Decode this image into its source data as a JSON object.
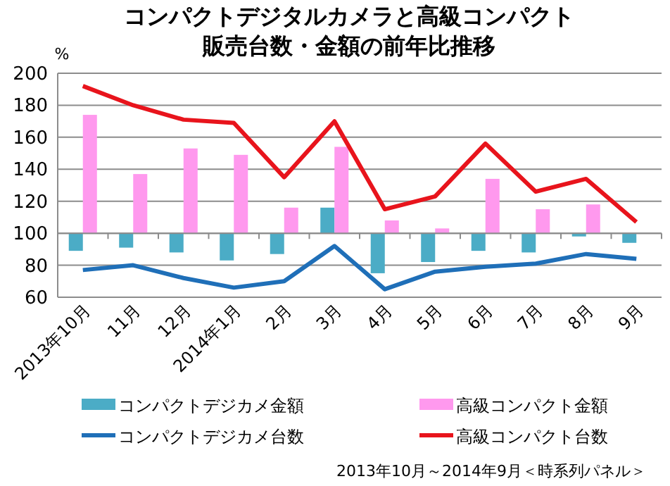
{
  "chart_data": {
    "type": "bar",
    "title": "コンパクトデジタルカメラと高級コンパクト",
    "subtitle": "販売台数・金額の前年比推移",
    "ylabel": "%",
    "categories": [
      "2013年10月",
      "11月",
      "12月",
      "2014年1月",
      "2月",
      "3月",
      "4月",
      "5月",
      "6月",
      "7月",
      "8月",
      "9月"
    ],
    "series": [
      {
        "name": "コンパクトデジカメ金額",
        "color": "#4bacc6",
        "base": [
          100,
          100,
          100,
          100,
          100,
          100,
          100,
          100,
          100,
          100,
          100,
          100
        ],
        "values": [
          -11,
          -9,
          -12,
          -17,
          -13,
          16,
          -25,
          -18,
          -11,
          -12,
          -2,
          -6
        ]
      },
      {
        "name": "高級コンパクト金額",
        "color": "#ff99ee",
        "base": [
          100,
          100,
          100,
          100,
          100,
          100,
          100,
          100,
          100,
          100,
          100,
          null
        ],
        "values": [
          74,
          37,
          53,
          49,
          16,
          54,
          8,
          3,
          34,
          15,
          18,
          null
        ]
      },
      {
        "name": "コンパクトデジカメ台数",
        "type": "line",
        "color": "#1f6fb8",
        "values": [
          77,
          80,
          72,
          66,
          70,
          92,
          65,
          76,
          79,
          81,
          87,
          84
        ]
      },
      {
        "name": "高級コンパクト台数",
        "type": "line",
        "color": "#e8141c",
        "values": [
          192,
          180,
          171,
          169,
          135,
          170,
          115,
          123,
          156,
          126,
          134,
          107
        ]
      }
    ],
    "ylim": [
      60,
      200
    ],
    "yticks": [
      60,
      80,
      100,
      120,
      140,
      160,
      180,
      200
    ],
    "grid": "y",
    "legend": "bottom",
    "annotations": [
      "2013年10月～2014年9月＜時系列パネル＞"
    ]
  }
}
